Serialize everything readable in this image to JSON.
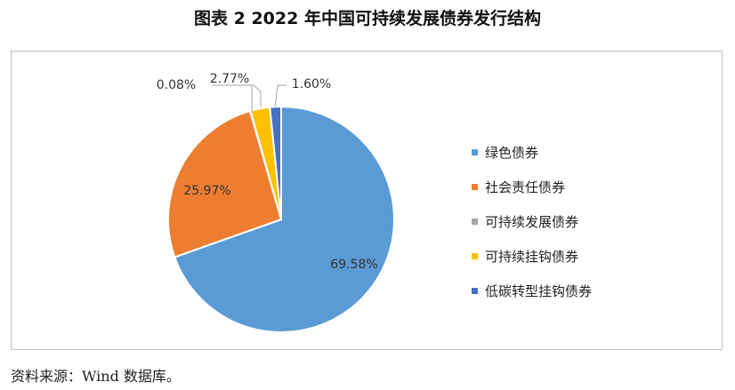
{
  "title": "图表 2 2022 年中国可持续发展债券发行结构",
  "source": "资料来源：Wind 数据库。",
  "chart_data": {
    "type": "pie",
    "title": "图表 2 2022 年中国可持续发展债券发行结构",
    "legend_position": "right",
    "slices": [
      {
        "name": "绿色债券",
        "value": 69.58,
        "label": "69.58%",
        "color": "#5b9bd5"
      },
      {
        "name": "社会责任债券",
        "value": 25.97,
        "label": "25.97%",
        "color": "#ed7d31"
      },
      {
        "name": "可持续发展债券",
        "value": 0.08,
        "label": "0.08%",
        "color": "#a5a5a5"
      },
      {
        "name": "可持续挂钩债券",
        "value": 2.77,
        "label": "2.77%",
        "color": "#ffc000"
      },
      {
        "name": "低碳转型挂钩债券",
        "value": 1.6,
        "label": "1.60%",
        "color": "#4472c4"
      }
    ]
  }
}
